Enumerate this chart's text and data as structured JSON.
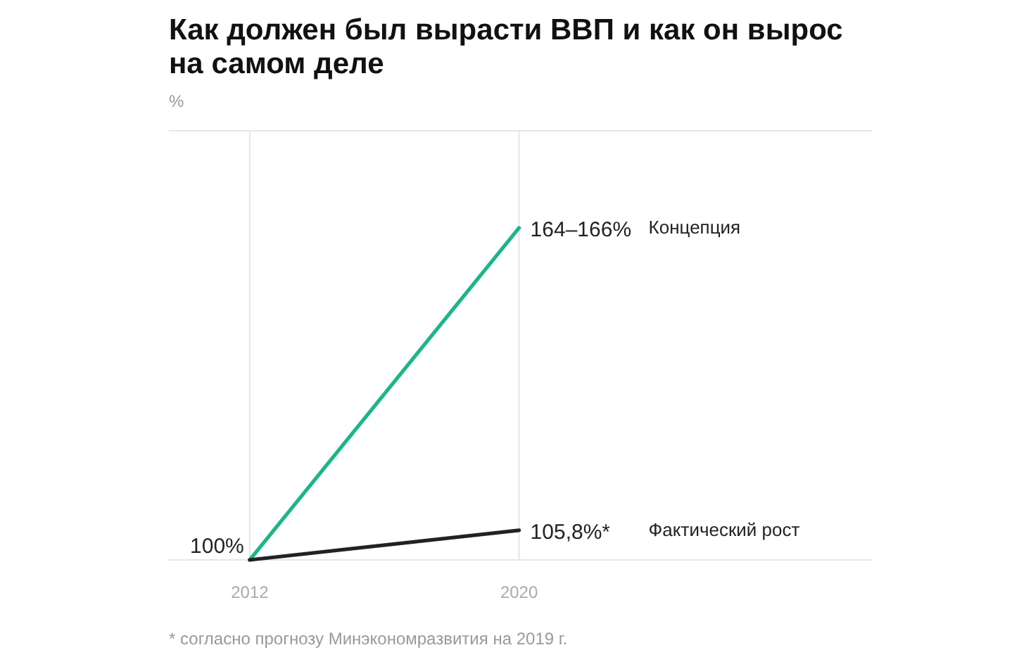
{
  "chart_data": {
    "type": "line",
    "title": "Как должен был вырасти ВВП и как он вырос на самом деле",
    "x": [
      2012,
      2020
    ],
    "xlim": [
      2009.6,
      2030.5
    ],
    "xticks": [
      2012,
      2020
    ],
    "ylim": [
      100,
      184
    ],
    "grid": "x",
    "legend": false,
    "marker": "none",
    "line_style": "solid",
    "series": [
      {
        "name": "Концепция",
        "color": "#1db589",
        "values": [
          100,
          165
        ]
      },
      {
        "name": "Фактический рост",
        "color": "#222222",
        "values": [
          100,
          105.8
        ],
        "value_labels": [
          "100%",
          "105,8%*"
        ]
      }
    ],
    "annotations": [
      {
        "text": "164–166%",
        "x": 2020,
        "y": 165
      },
      "%",
      "* согласно прогнозу Минэкономразвития на 2019 г."
    ]
  }
}
